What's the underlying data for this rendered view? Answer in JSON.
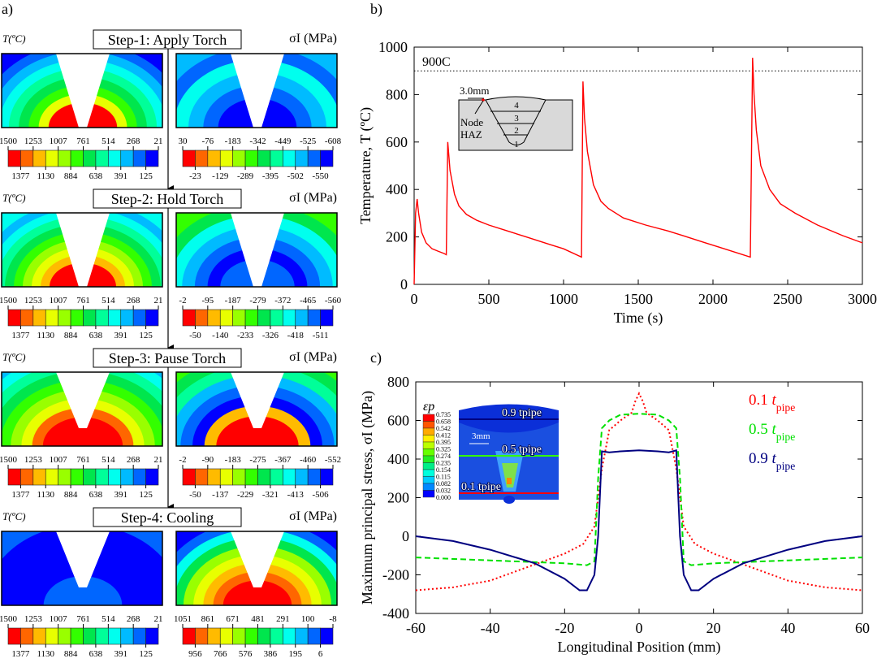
{
  "panel_labels": {
    "a": "a)",
    "b": "b)",
    "c": "c)"
  },
  "figure_a": {
    "temp_unit_label": "T(ºC)",
    "stress_unit_label": "σI (MPa)",
    "colorbar_colors": [
      "#ff0000",
      "#ff6600",
      "#ffbb00",
      "#e8ff00",
      "#99ff00",
      "#33ff00",
      "#00e64d",
      "#00ff99",
      "#00ffee",
      "#00bbff",
      "#0066ff",
      "#0000ff"
    ],
    "steps": [
      {
        "title": "Step-1:  Apply Torch",
        "temp_top": [
          "1500",
          "1253",
          "1007",
          "761",
          "514",
          "268",
          "21"
        ],
        "temp_bottom": [
          "1377",
          "1130",
          "884",
          "638",
          "391",
          "125"
        ],
        "stress_top": [
          "30",
          "-76",
          "-183",
          "-342",
          "-449",
          "-525",
          "-608"
        ],
        "stress_bottom": [
          "-23",
          "-129",
          "-289",
          "-395",
          "-502",
          "-550"
        ]
      },
      {
        "title": "Step-2:  Hold Torch",
        "temp_top": [
          "1500",
          "1253",
          "1007",
          "761",
          "514",
          "268",
          "21"
        ],
        "temp_bottom": [
          "1377",
          "1130",
          "884",
          "638",
          "391",
          "125"
        ],
        "stress_top": [
          "-2",
          "-95",
          "-187",
          "-279",
          "-372",
          "-465",
          "-560"
        ],
        "stress_bottom": [
          "-50",
          "-140",
          "-233",
          "-326",
          "-418",
          "-511"
        ]
      },
      {
        "title": "Step-3:  Pause Torch",
        "temp_top": [
          "1500",
          "1253",
          "1007",
          "761",
          "514",
          "268",
          "21"
        ],
        "temp_bottom": [
          "1377",
          "1130",
          "884",
          "638",
          "391",
          "125"
        ],
        "stress_top": [
          "-2",
          "-90",
          "-183",
          "-275",
          "-367",
          "-460",
          "-552"
        ],
        "stress_bottom": [
          "-50",
          "-137",
          "-229",
          "-321",
          "-413",
          "-506"
        ]
      },
      {
        "title": "Step-4: Cooling",
        "temp_top": [
          "1500",
          "1253",
          "1007",
          "761",
          "514",
          "268",
          "21"
        ],
        "temp_bottom": [
          "1377",
          "1130",
          "884",
          "638",
          "391",
          "125"
        ],
        "stress_top": [
          "1051",
          "861",
          "671",
          "481",
          "291",
          "100",
          "-8"
        ],
        "stress_bottom": [
          "956",
          "766",
          "576",
          "386",
          "195",
          "6"
        ]
      }
    ]
  },
  "chart_data": [
    {
      "type": "line",
      "xlabel": "Time (s)",
      "ylabel": "Temperature, T (ºC)",
      "xlim": [
        0,
        3000
      ],
      "ylim": [
        0,
        1000
      ],
      "xticks": [
        0,
        500,
        1000,
        1500,
        2000,
        2500,
        3000
      ],
      "yticks": [
        0,
        200,
        400,
        600,
        800,
        1000
      ],
      "grid": false,
      "color": "#ff0000",
      "reference_line": {
        "y": 900,
        "label": "900C",
        "style": "dotted"
      },
      "inset": {
        "dimension": "3.0mm",
        "node_label": "Node",
        "haz_label": "HAZ",
        "pass_labels": [
          "1",
          "2",
          "3",
          "4"
        ]
      },
      "x": [
        0,
        10,
        20,
        30,
        50,
        80,
        120,
        160,
        200,
        215,
        225,
        240,
        270,
        300,
        350,
        420,
        500,
        600,
        750,
        900,
        1000,
        1120,
        1130,
        1140,
        1160,
        1200,
        1250,
        1300,
        1400,
        1550,
        1700,
        1800,
        1950,
        2050,
        2250,
        2265,
        2275,
        2290,
        2320,
        2380,
        2450,
        2550,
        2700,
        2870,
        3000
      ],
      "y": [
        0,
        300,
        360,
        300,
        220,
        175,
        150,
        140,
        130,
        125,
        600,
        480,
        380,
        330,
        295,
        270,
        250,
        230,
        200,
        170,
        150,
        115,
        855,
        700,
        560,
        420,
        350,
        320,
        280,
        250,
        225,
        205,
        175,
        155,
        115,
        955,
        800,
        650,
        500,
        400,
        340,
        300,
        250,
        205,
        175
      ]
    },
    {
      "type": "line",
      "xlabel": "Longitudinal Position (mm)",
      "ylabel": "Maximum principal stress, σI (MPa)",
      "xlim": [
        -60,
        60
      ],
      "ylim": [
        -400,
        800
      ],
      "xticks": [
        -60,
        -40,
        -20,
        0,
        20,
        40,
        60
      ],
      "yticks": [
        -400,
        -200,
        0,
        200,
        400,
        600,
        800
      ],
      "grid": false,
      "legend": "top-right",
      "inset": {
        "colorbar_title": "εp",
        "colorbar_values": [
          "0.735",
          "0.658",
          "0.542",
          "0.412",
          "0.395",
          "0.325",
          "0.274",
          "0.235",
          "0.154",
          "0.115",
          "0.082",
          "0.032",
          "0.000"
        ],
        "line_labels": [
          "0.9 tpipe",
          "0.5 tpipe",
          "0.1 tpipe"
        ],
        "dimension": "3mm"
      },
      "series": [
        {
          "name": "0.1 tpipe",
          "color": "#ff0000",
          "style": "dotted",
          "x": [
            -60,
            -50,
            -40,
            -30,
            -20,
            -15,
            -12,
            -11,
            -10,
            -8,
            -5,
            -2,
            -1,
            0,
            1,
            2,
            5,
            8,
            10,
            11,
            12,
            15,
            20,
            30,
            40,
            50,
            60
          ],
          "y": [
            -280,
            -265,
            -230,
            -160,
            -90,
            -40,
            50,
            200,
            350,
            550,
            600,
            640,
            700,
            740,
            700,
            640,
            600,
            550,
            350,
            200,
            50,
            -40,
            -90,
            -160,
            -230,
            -265,
            -280
          ]
        },
        {
          "name": "0.5 tpipe",
          "color": "#00e000",
          "style": "dashed",
          "x": [
            -60,
            -40,
            -20,
            -14,
            -12,
            -11,
            -10,
            -8,
            -5,
            0,
            5,
            8,
            10,
            11,
            12,
            14,
            20,
            40,
            60
          ],
          "y": [
            -110,
            -125,
            -140,
            -150,
            -130,
            300,
            560,
            600,
            630,
            635,
            630,
            600,
            560,
            300,
            -130,
            -150,
            -140,
            -125,
            -110
          ]
        },
        {
          "name": "0.9 tpipe",
          "color": "#000080",
          "style": "solid",
          "x": [
            -60,
            -50,
            -40,
            -28,
            -20,
            -16,
            -14,
            -12,
            -11,
            -10,
            -8,
            -5,
            0,
            5,
            8,
            10,
            11,
            12,
            14,
            16,
            20,
            28,
            40,
            50,
            60
          ],
          "y": [
            0,
            -25,
            -70,
            -140,
            -220,
            -280,
            -280,
            -200,
            0,
            440,
            435,
            440,
            445,
            440,
            435,
            445,
            0,
            -200,
            -280,
            -280,
            -220,
            -140,
            -70,
            -25,
            0
          ]
        }
      ]
    }
  ]
}
